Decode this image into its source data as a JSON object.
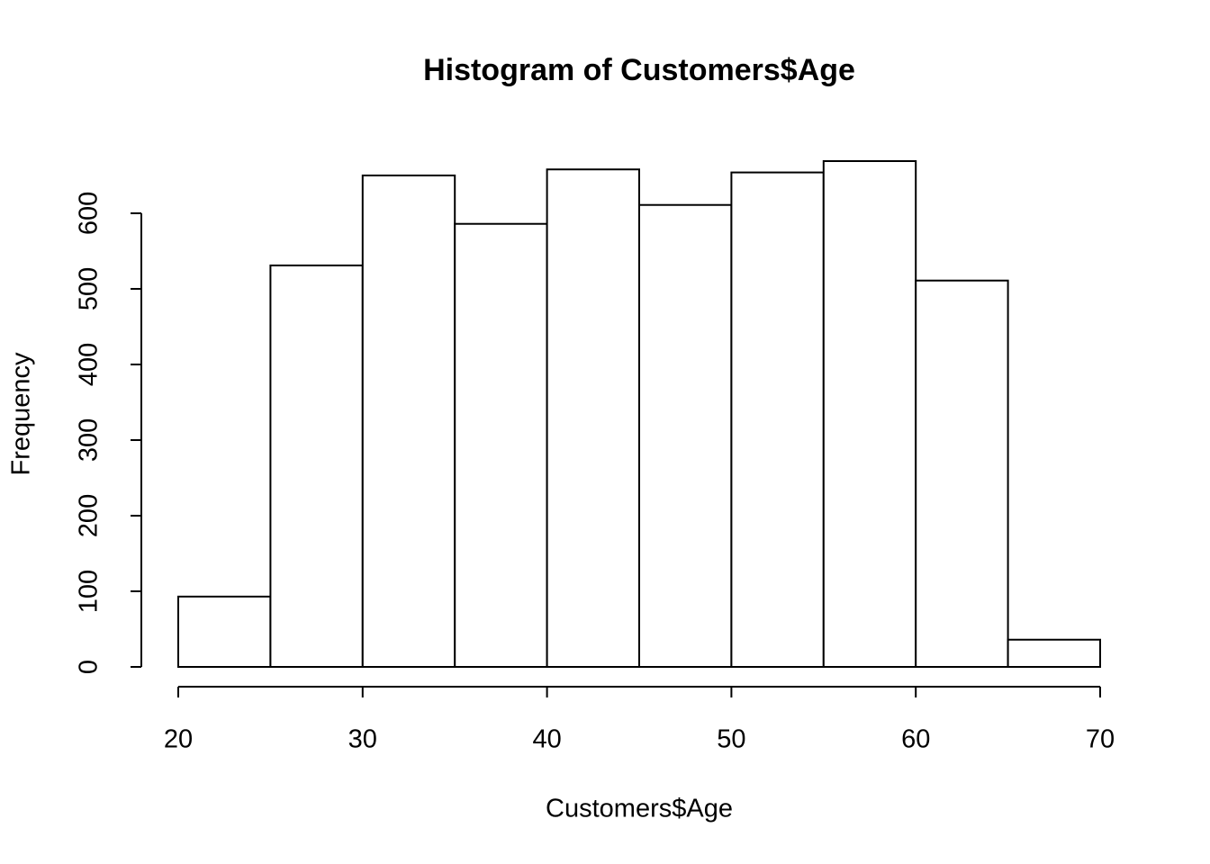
{
  "chart_data": {
    "type": "histogram",
    "title": "Histogram of Customers$Age",
    "x_label": "Customers$Age",
    "y_label": "Frequency",
    "bins": [
      20,
      25,
      30,
      35,
      40,
      45,
      50,
      55,
      60,
      65,
      70
    ],
    "values": [
      93,
      531,
      650,
      586,
      658,
      611,
      654,
      669,
      511,
      36
    ],
    "color": "#ffffff",
    "edge_color": "#000000",
    "xlim": [
      20,
      70
    ],
    "xticks": [
      20,
      30,
      40,
      50,
      60,
      70
    ],
    "ylim": [
      0,
      669
    ],
    "yticks": [
      0,
      100,
      200,
      300,
      400,
      500,
      600
    ]
  }
}
